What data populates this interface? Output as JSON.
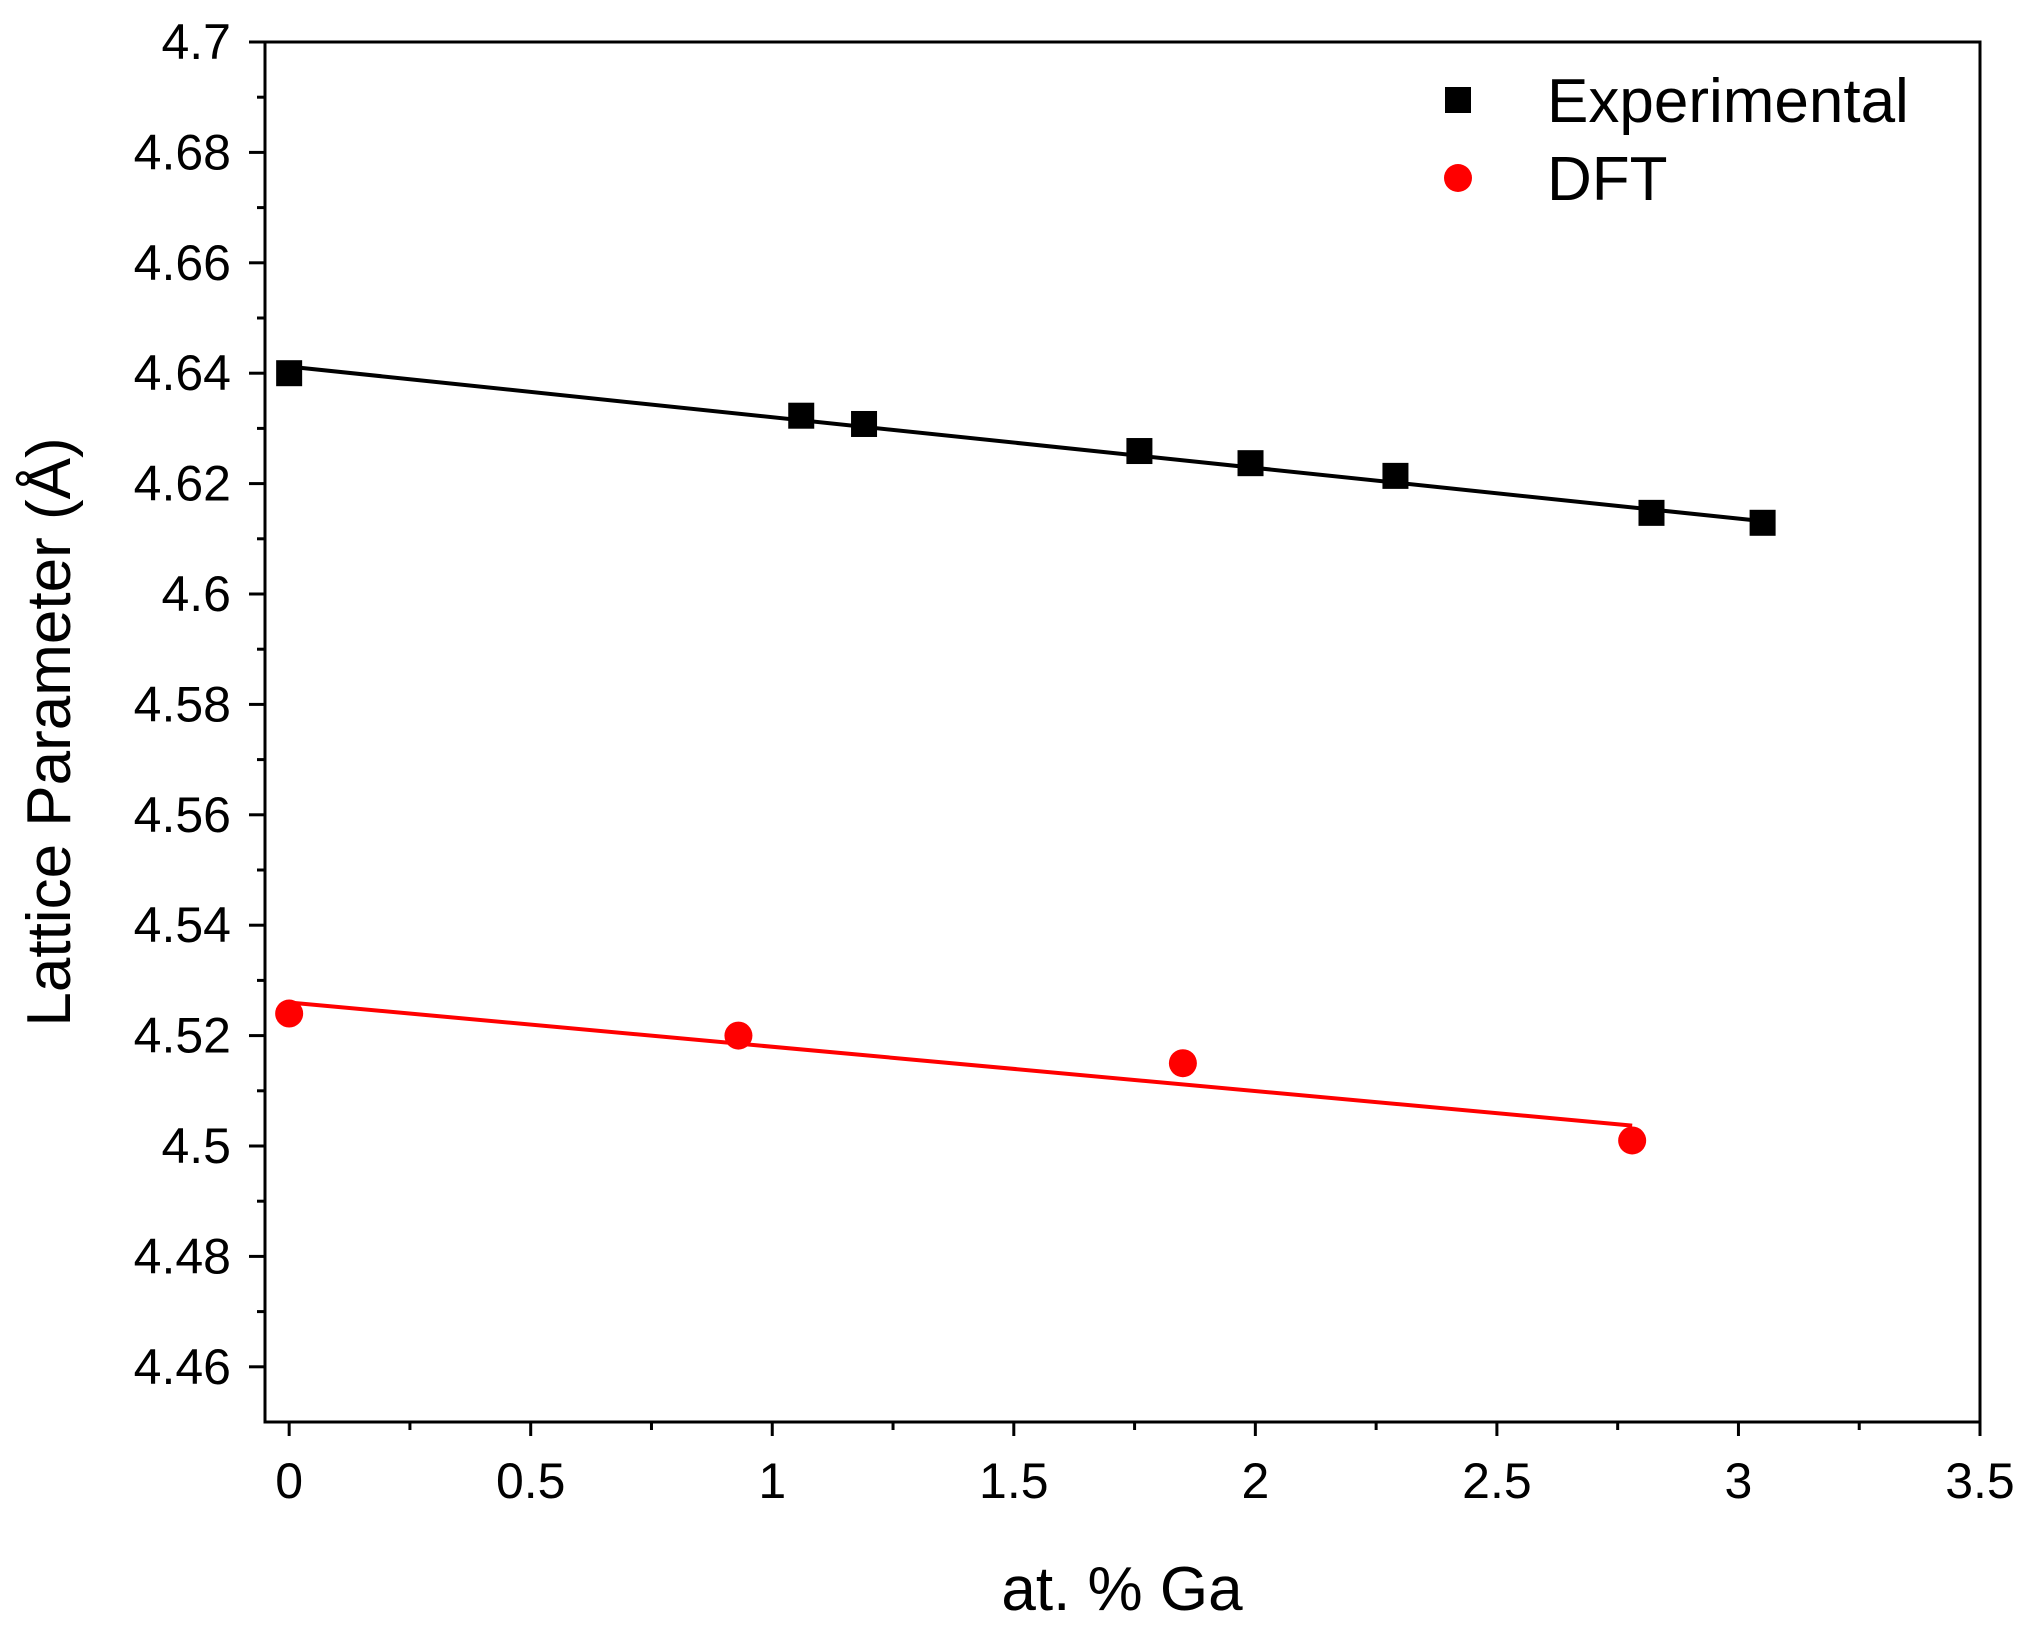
{
  "chart_data": {
    "type": "scatter",
    "title": "",
    "xlabel": "at. % Ga",
    "ylabel": "Lattice Parameter (Å)",
    "xlim": [
      -0.05,
      3.5
    ],
    "ylim": [
      4.45,
      4.7
    ],
    "x_ticks": [
      0,
      0.5,
      1,
      1.5,
      2,
      2.5,
      3,
      3.5
    ],
    "x_tick_labels": [
      "0",
      "0.5",
      "1",
      "1.5",
      "2",
      "2.5",
      "3",
      "3.5"
    ],
    "y_ticks": [
      4.46,
      4.48,
      4.5,
      4.52,
      4.54,
      4.56,
      4.58,
      4.6,
      4.62,
      4.64,
      4.66,
      4.68,
      4.7
    ],
    "y_tick_labels": [
      "4.46",
      "4.48",
      "4.5",
      "4.52",
      "4.54",
      "4.56",
      "4.58",
      "4.6",
      "4.62",
      "4.64",
      "4.66",
      "4.68",
      "4.7"
    ],
    "grid": false,
    "legend_position": "top-right",
    "series": [
      {
        "name": "Experimental",
        "marker": "square",
        "color": "#000000",
        "x": [
          0,
          1.06,
          1.19,
          1.76,
          1.99,
          2.29,
          2.82,
          3.05
        ],
        "y": [
          4.64,
          4.6323,
          4.6308,
          4.6259,
          4.6237,
          4.6214,
          4.6147,
          4.6129
        ],
        "fit": {
          "x": [
            0,
            3.05
          ],
          "y": [
            4.6412,
            4.6132
          ]
        }
      },
      {
        "name": "DFT",
        "marker": "circle",
        "color": "#ff0000",
        "x": [
          0,
          0.93,
          1.85,
          2.78
        ],
        "y": [
          4.524,
          4.52,
          4.515,
          4.501
        ],
        "fit": {
          "x": [
            0,
            2.78
          ],
          "y": [
            4.526,
            4.5037
          ]
        }
      }
    ]
  }
}
